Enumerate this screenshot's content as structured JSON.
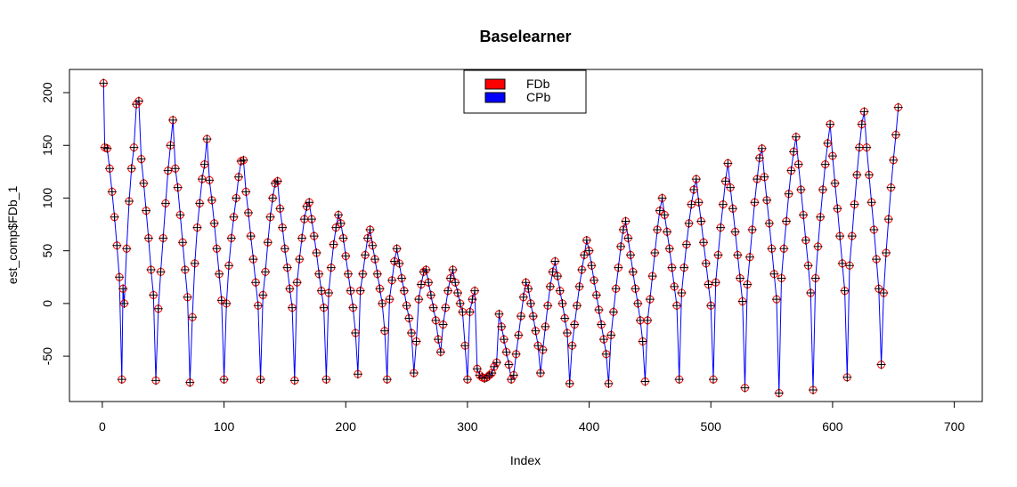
{
  "chart_data": {
    "type": "line",
    "title": "Baselearner",
    "xlabel": "Index",
    "ylabel": "est_comp$FDb_1",
    "xlim": [
      -27,
      723
    ],
    "ylim": [
      -93,
      222
    ],
    "x_ticks": [
      0,
      100,
      200,
      300,
      400,
      500,
      600,
      700
    ],
    "y_ticks": [
      -50,
      0,
      50,
      100,
      150,
      200
    ],
    "legend_position": "top",
    "legend": [
      {
        "name": "FDb",
        "color": "#ff0000"
      },
      {
        "name": "CPb",
        "color": "#0000ff"
      }
    ],
    "series": [
      {
        "name": "FDb",
        "color": "#ff0000",
        "marker": "circle",
        "values_ref": "samples"
      },
      {
        "name": "CPb",
        "color": "#0000ff",
        "marker": "plus-line",
        "values_ref": "samples"
      }
    ],
    "samples": [
      [
        1,
        209
      ],
      [
        2,
        148
      ],
      [
        4,
        147
      ],
      [
        6,
        128
      ],
      [
        8,
        106
      ],
      [
        10,
        82
      ],
      [
        12,
        55
      ],
      [
        14,
        25
      ],
      [
        16,
        -72
      ],
      [
        17,
        14
      ],
      [
        18,
        0
      ],
      [
        20,
        52
      ],
      [
        22,
        97
      ],
      [
        24,
        128
      ],
      [
        26,
        148
      ],
      [
        28,
        189
      ],
      [
        30,
        192
      ],
      [
        32,
        137
      ],
      [
        34,
        114
      ],
      [
        36,
        88
      ],
      [
        38,
        62
      ],
      [
        40,
        32
      ],
      [
        42,
        8
      ],
      [
        44,
        -73
      ],
      [
        46,
        -5
      ],
      [
        48,
        30
      ],
      [
        50,
        62
      ],
      [
        52,
        95
      ],
      [
        54,
        126
      ],
      [
        56,
        150
      ],
      [
        58,
        174
      ],
      [
        60,
        128
      ],
      [
        62,
        110
      ],
      [
        64,
        84
      ],
      [
        66,
        58
      ],
      [
        68,
        32
      ],
      [
        70,
        6
      ],
      [
        72,
        -75
      ],
      [
        74,
        -13
      ],
      [
        76,
        38
      ],
      [
        78,
        72
      ],
      [
        80,
        95
      ],
      [
        82,
        118
      ],
      [
        84,
        132
      ],
      [
        86,
        156
      ],
      [
        88,
        117
      ],
      [
        90,
        98
      ],
      [
        92,
        76
      ],
      [
        94,
        52
      ],
      [
        96,
        28
      ],
      [
        98,
        3
      ],
      [
        100,
        -72
      ],
      [
        102,
        0
      ],
      [
        104,
        36
      ],
      [
        106,
        62
      ],
      [
        108,
        82
      ],
      [
        110,
        100
      ],
      [
        112,
        120
      ],
      [
        114,
        135
      ],
      [
        116,
        136
      ],
      [
        118,
        106
      ],
      [
        120,
        86
      ],
      [
        122,
        64
      ],
      [
        124,
        42
      ],
      [
        126,
        20
      ],
      [
        128,
        -2
      ],
      [
        130,
        -72
      ],
      [
        132,
        8
      ],
      [
        134,
        30
      ],
      [
        136,
        58
      ],
      [
        138,
        82
      ],
      [
        140,
        100
      ],
      [
        142,
        114
      ],
      [
        144,
        116
      ],
      [
        146,
        90
      ],
      [
        148,
        72
      ],
      [
        150,
        52
      ],
      [
        152,
        34
      ],
      [
        154,
        14
      ],
      [
        156,
        -4
      ],
      [
        158,
        -73
      ],
      [
        160,
        20
      ],
      [
        162,
        42
      ],
      [
        164,
        62
      ],
      [
        166,
        80
      ],
      [
        168,
        92
      ],
      [
        170,
        96
      ],
      [
        172,
        80
      ],
      [
        174,
        64
      ],
      [
        176,
        48
      ],
      [
        178,
        28
      ],
      [
        180,
        12
      ],
      [
        182,
        -4
      ],
      [
        184,
        -72
      ],
      [
        186,
        10
      ],
      [
        188,
        34
      ],
      [
        190,
        56
      ],
      [
        192,
        72
      ],
      [
        194,
        84
      ],
      [
        196,
        76
      ],
      [
        198,
        62
      ],
      [
        200,
        45
      ],
      [
        202,
        28
      ],
      [
        204,
        12
      ],
      [
        206,
        -4
      ],
      [
        208,
        -28
      ],
      [
        210,
        -67
      ],
      [
        212,
        12
      ],
      [
        214,
        28
      ],
      [
        216,
        46
      ],
      [
        218,
        62
      ],
      [
        220,
        70
      ],
      [
        222,
        55
      ],
      [
        224,
        42
      ],
      [
        226,
        28
      ],
      [
        228,
        14
      ],
      [
        230,
        0
      ],
      [
        232,
        -26
      ],
      [
        234,
        -72
      ],
      [
        236,
        4
      ],
      [
        238,
        22
      ],
      [
        240,
        40
      ],
      [
        242,
        52
      ],
      [
        244,
        38
      ],
      [
        246,
        24
      ],
      [
        248,
        12
      ],
      [
        250,
        -2
      ],
      [
        252,
        -14
      ],
      [
        254,
        -28
      ],
      [
        256,
        -66
      ],
      [
        258,
        -36
      ],
      [
        260,
        4
      ],
      [
        262,
        18
      ],
      [
        264,
        30
      ],
      [
        266,
        32
      ],
      [
        268,
        20
      ],
      [
        270,
        8
      ],
      [
        272,
        -4
      ],
      [
        274,
        -16
      ],
      [
        276,
        -34
      ],
      [
        278,
        -46
      ],
      [
        280,
        -20
      ],
      [
        282,
        -4
      ],
      [
        284,
        12
      ],
      [
        286,
        24
      ],
      [
        288,
        32
      ],
      [
        290,
        20
      ],
      [
        292,
        10
      ],
      [
        294,
        0
      ],
      [
        296,
        -8
      ],
      [
        298,
        -40
      ],
      [
        300,
        -72
      ],
      [
        302,
        -8
      ],
      [
        304,
        4
      ],
      [
        306,
        12
      ],
      [
        308,
        -62
      ],
      [
        310,
        -68
      ],
      [
        312,
        -70
      ],
      [
        314,
        -71
      ],
      [
        316,
        -70
      ],
      [
        318,
        -68
      ],
      [
        320,
        -66
      ],
      [
        322,
        -60
      ],
      [
        324,
        -56
      ],
      [
        326,
        -10
      ],
      [
        328,
        -22
      ],
      [
        330,
        -34
      ],
      [
        332,
        -46
      ],
      [
        334,
        -58
      ],
      [
        336,
        -72
      ],
      [
        338,
        -68
      ],
      [
        340,
        -48
      ],
      [
        342,
        -30
      ],
      [
        344,
        -12
      ],
      [
        346,
        6
      ],
      [
        348,
        20
      ],
      [
        350,
        14
      ],
      [
        352,
        0
      ],
      [
        354,
        -12
      ],
      [
        356,
        -26
      ],
      [
        358,
        -40
      ],
      [
        360,
        -66
      ],
      [
        362,
        -44
      ],
      [
        364,
        -22
      ],
      [
        366,
        -2
      ],
      [
        368,
        16
      ],
      [
        370,
        30
      ],
      [
        372,
        40
      ],
      [
        374,
        26
      ],
      [
        376,
        12
      ],
      [
        378,
        0
      ],
      [
        380,
        -14
      ],
      [
        382,
        -28
      ],
      [
        384,
        -76
      ],
      [
        386,
        -40
      ],
      [
        388,
        -20
      ],
      [
        390,
        -2
      ],
      [
        392,
        16
      ],
      [
        394,
        32
      ],
      [
        396,
        46
      ],
      [
        398,
        60
      ],
      [
        400,
        50
      ],
      [
        402,
        36
      ],
      [
        404,
        22
      ],
      [
        406,
        8
      ],
      [
        408,
        -6
      ],
      [
        410,
        -20
      ],
      [
        412,
        -34
      ],
      [
        414,
        -48
      ],
      [
        416,
        -76
      ],
      [
        418,
        -30
      ],
      [
        420,
        -8
      ],
      [
        422,
        14
      ],
      [
        424,
        34
      ],
      [
        426,
        54
      ],
      [
        428,
        70
      ],
      [
        430,
        78
      ],
      [
        432,
        62
      ],
      [
        434,
        46
      ],
      [
        436,
        30
      ],
      [
        438,
        14
      ],
      [
        440,
        0
      ],
      [
        442,
        -16
      ],
      [
        444,
        -36
      ],
      [
        446,
        -74
      ],
      [
        448,
        -16
      ],
      [
        450,
        4
      ],
      [
        452,
        26
      ],
      [
        454,
        48
      ],
      [
        456,
        70
      ],
      [
        458,
        88
      ],
      [
        460,
        100
      ],
      [
        462,
        84
      ],
      [
        464,
        68
      ],
      [
        466,
        52
      ],
      [
        468,
        34
      ],
      [
        470,
        16
      ],
      [
        472,
        -2
      ],
      [
        474,
        -72
      ],
      [
        476,
        10
      ],
      [
        478,
        34
      ],
      [
        480,
        56
      ],
      [
        482,
        76
      ],
      [
        484,
        94
      ],
      [
        486,
        108
      ],
      [
        488,
        118
      ],
      [
        490,
        96
      ],
      [
        492,
        78
      ],
      [
        494,
        58
      ],
      [
        496,
        38
      ],
      [
        498,
        18
      ],
      [
        500,
        -2
      ],
      [
        502,
        -72
      ],
      [
        504,
        20
      ],
      [
        506,
        46
      ],
      [
        508,
        72
      ],
      [
        510,
        94
      ],
      [
        512,
        116
      ],
      [
        514,
        133
      ],
      [
        516,
        110
      ],
      [
        518,
        90
      ],
      [
        520,
        68
      ],
      [
        522,
        46
      ],
      [
        524,
        24
      ],
      [
        526,
        2
      ],
      [
        528,
        -80
      ],
      [
        530,
        18
      ],
      [
        532,
        44
      ],
      [
        534,
        70
      ],
      [
        536,
        96
      ],
      [
        538,
        118
      ],
      [
        540,
        138
      ],
      [
        542,
        147
      ],
      [
        544,
        120
      ],
      [
        546,
        98
      ],
      [
        548,
        76
      ],
      [
        550,
        52
      ],
      [
        552,
        28
      ],
      [
        554,
        4
      ],
      [
        556,
        -85
      ],
      [
        558,
        24
      ],
      [
        560,
        52
      ],
      [
        562,
        78
      ],
      [
        564,
        104
      ],
      [
        566,
        126
      ],
      [
        568,
        144
      ],
      [
        570,
        158
      ],
      [
        572,
        132
      ],
      [
        574,
        108
      ],
      [
        576,
        84
      ],
      [
        578,
        60
      ],
      [
        580,
        36
      ],
      [
        582,
        10
      ],
      [
        584,
        -82
      ],
      [
        586,
        24
      ],
      [
        588,
        54
      ],
      [
        590,
        82
      ],
      [
        592,
        108
      ],
      [
        594,
        132
      ],
      [
        596,
        152
      ],
      [
        598,
        170
      ],
      [
        600,
        140
      ],
      [
        602,
        114
      ],
      [
        604,
        90
      ],
      [
        606,
        64
      ],
      [
        608,
        38
      ],
      [
        610,
        12
      ],
      [
        612,
        -70
      ],
      [
        614,
        36
      ],
      [
        616,
        64
      ],
      [
        618,
        94
      ],
      [
        620,
        122
      ],
      [
        622,
        148
      ],
      [
        624,
        170
      ],
      [
        626,
        182
      ],
      [
        628,
        148
      ],
      [
        630,
        122
      ],
      [
        632,
        96
      ],
      [
        634,
        70
      ],
      [
        636,
        42
      ],
      [
        638,
        14
      ],
      [
        640,
        -58
      ],
      [
        642,
        10
      ],
      [
        644,
        48
      ],
      [
        646,
        80
      ],
      [
        648,
        110
      ],
      [
        650,
        136
      ],
      [
        652,
        160
      ],
      [
        654,
        186
      ]
    ]
  }
}
